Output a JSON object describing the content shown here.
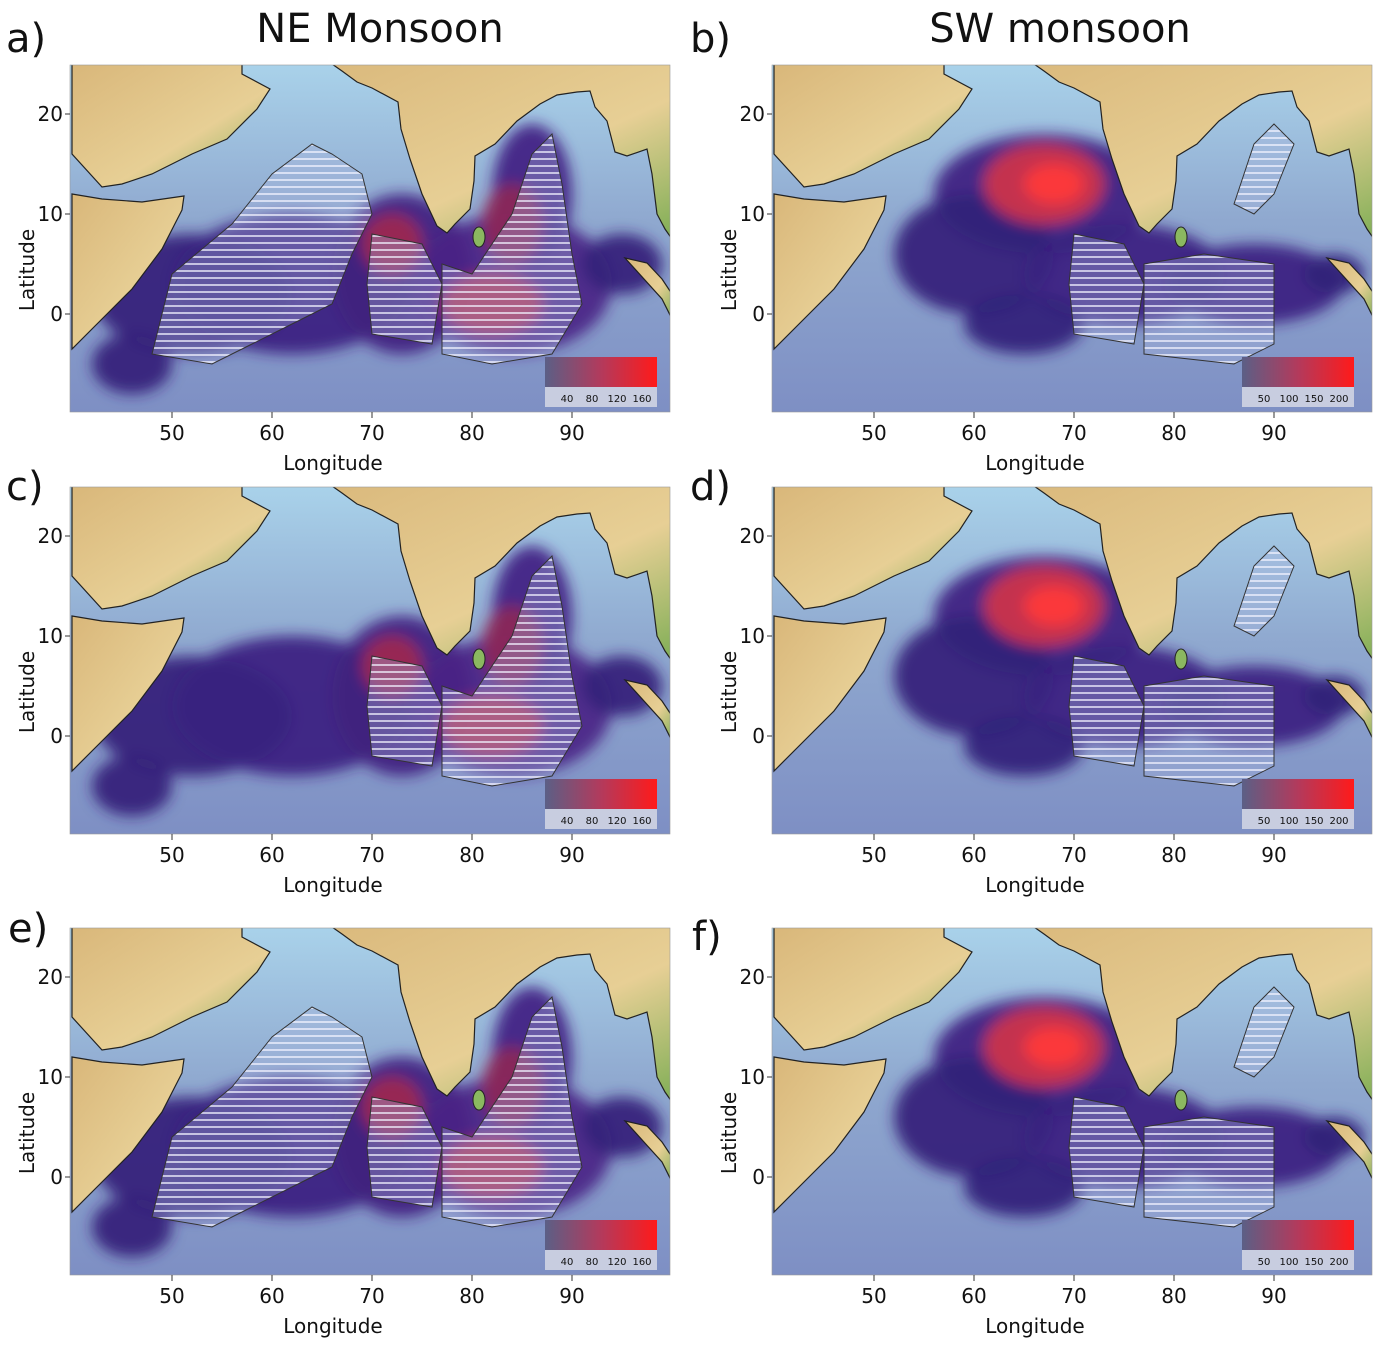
{
  "columns": [
    {
      "title": "NE Monsoon",
      "colorbar_ticks": [
        40,
        80,
        120,
        160
      ]
    },
    {
      "title": "SW monsoon",
      "colorbar_ticks": [
        50,
        100,
        150,
        200
      ]
    }
  ],
  "axes": {
    "xlabel": "Longitude",
    "ylabel": "Latitude",
    "xticks": [
      50,
      60,
      70,
      80,
      90
    ],
    "yticks": [
      20,
      10,
      0
    ]
  },
  "panels": [
    {
      "label": "a)"
    },
    {
      "label": "b)"
    },
    {
      "label": "c)"
    },
    {
      "label": "d)"
    },
    {
      "label": "e)"
    },
    {
      "label": "f)"
    }
  ]
}
